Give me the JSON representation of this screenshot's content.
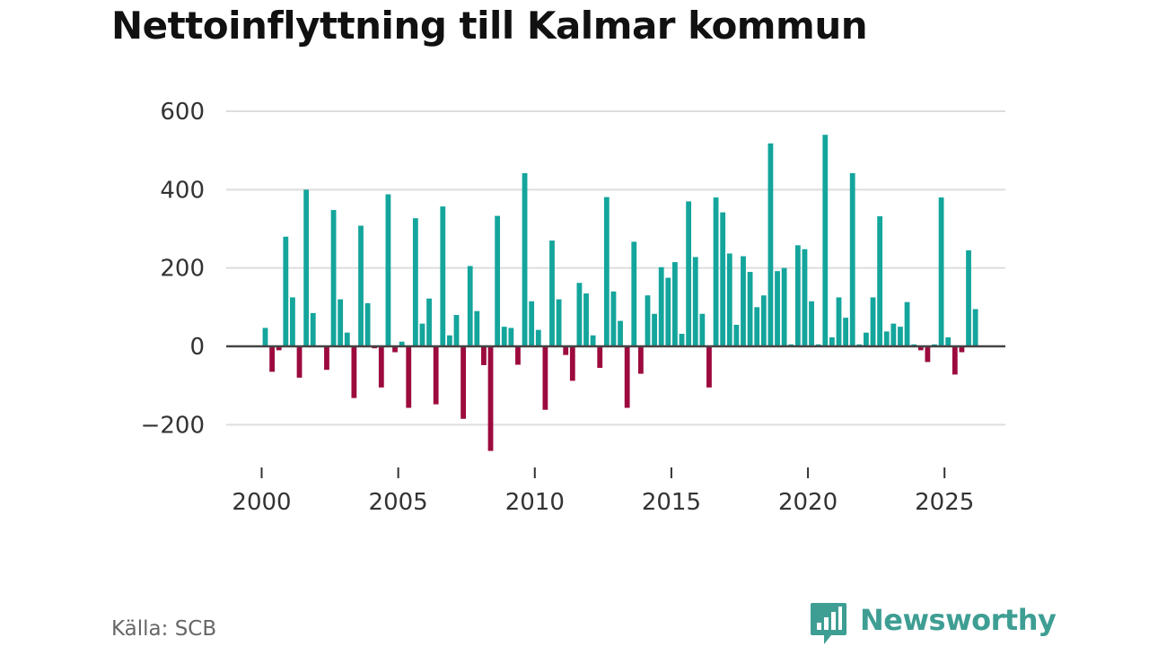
{
  "colors": {
    "positive": "#14a59c",
    "negative": "#9c0a3e",
    "grid": "#dddddd",
    "zero_line": "#444444",
    "brand": "#3e9e93"
  },
  "footer": {
    "source": "Källa: SCB",
    "brand": "Newsworthy",
    "brand_icon": "bar-chart-speech-bubble-icon"
  },
  "chart_data": {
    "type": "bar",
    "title": "Nettoinflyttning till Kalmar kommun",
    "xlabel": "",
    "ylabel": "",
    "ylim": [
      -270,
      600
    ],
    "grid": true,
    "legend": "none",
    "y_ticks": [
      600,
      400,
      200,
      0,
      -200
    ],
    "y_tick_labels": [
      "600",
      "400",
      "200",
      "0",
      "−200"
    ],
    "x_ticks": [
      2000,
      2005,
      2010,
      2015,
      2020,
      2025
    ],
    "x_tick_labels": [
      "2000",
      "2005",
      "2010",
      "2015",
      "2020",
      "2025"
    ],
    "start_year": 2000,
    "periods_per_year": 4,
    "values": [
      47,
      -65,
      -10,
      280,
      125,
      -80,
      400,
      85,
      0,
      -60,
      348,
      120,
      35,
      -132,
      308,
      110,
      -5,
      -105,
      388,
      -15,
      12,
      -157,
      327,
      58,
      122,
      -148,
      357,
      28,
      80,
      -185,
      205,
      90,
      -48,
      -267,
      333,
      50,
      47,
      -47,
      442,
      115,
      42,
      -162,
      270,
      120,
      -22,
      -88,
      162,
      135,
      28,
      -55,
      381,
      140,
      65,
      -157,
      267,
      -70,
      130,
      83,
      202,
      175,
      215,
      32,
      370,
      228,
      83,
      -105,
      380,
      342,
      237,
      55,
      230,
      190,
      100,
      130,
      518,
      192,
      200,
      5,
      258,
      248,
      115,
      5,
      540,
      23,
      125,
      73,
      442,
      5,
      35,
      125,
      332,
      38,
      58,
      50,
      113,
      5,
      -10,
      -40,
      5,
      380,
      23,
      -72,
      -15,
      245,
      95
    ]
  }
}
